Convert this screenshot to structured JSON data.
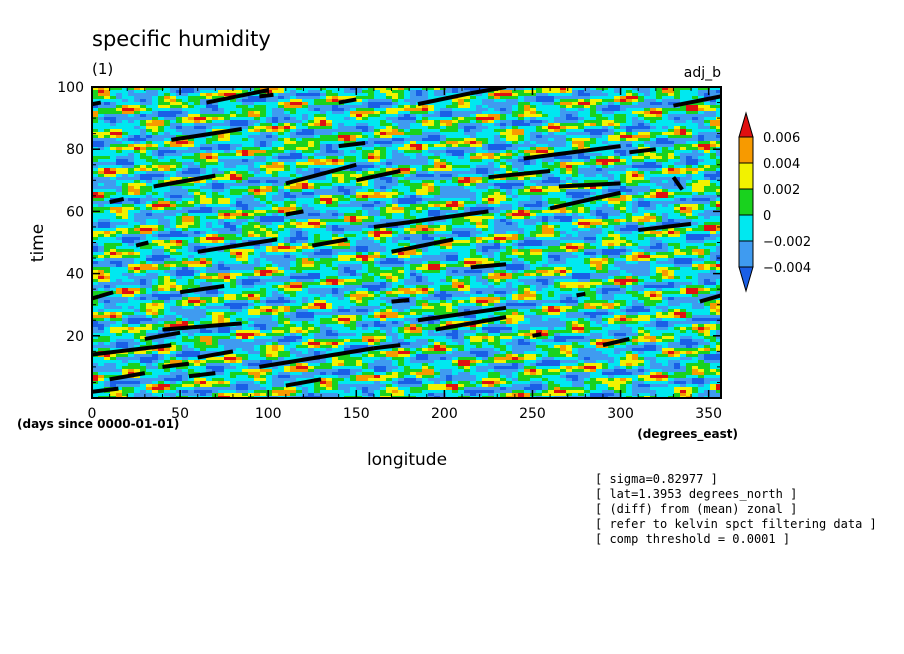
{
  "chart_data": {
    "type": "heatmap",
    "title": "specific humidity",
    "subtitle": "(1)",
    "run_label": "adj_b",
    "xlabel": "longitude",
    "x_units": "(degrees_east)",
    "ylabel": "time",
    "y_units": "(days since 0000-01-01)",
    "xlim": [
      0,
      357
    ],
    "ylim": [
      0,
      100
    ],
    "x_ticks": [
      0,
      50,
      100,
      150,
      200,
      250,
      300,
      350
    ],
    "x_tick_labels": [
      "0",
      "50",
      "100",
      "150",
      "200",
      "250",
      "300",
      "350"
    ],
    "y_ticks": [
      20,
      40,
      60,
      80,
      100
    ],
    "y_tick_labels": [
      "20",
      "40",
      "60",
      "80",
      "100"
    ],
    "colorbar": {
      "levels": [
        -0.006,
        -0.004,
        -0.002,
        0,
        0.002,
        0.004,
        0.006
      ],
      "labels": [
        "0.006",
        "0.004",
        "0.002",
        "0",
        "−0.002",
        "−0.004"
      ],
      "colors": [
        "#1a5fe6",
        "#3f9bf0",
        "#00e8f0",
        "#19d21e",
        "#f2f200",
        "#f79a00",
        "#e01010"
      ]
    },
    "composite_segments": [
      [
        0,
        94.5,
        5,
        95
      ],
      [
        10,
        63,
        18,
        64
      ],
      [
        65,
        95,
        100,
        99
      ],
      [
        95,
        97,
        103,
        97.5
      ],
      [
        140,
        95,
        150,
        96
      ],
      [
        185,
        94.5,
        215,
        98
      ],
      [
        215,
        98,
        235,
        100
      ],
      [
        45,
        83,
        85,
        86.5
      ],
      [
        140,
        81,
        155,
        82
      ],
      [
        110,
        69,
        150,
        75
      ],
      [
        150,
        70,
        175,
        73
      ],
      [
        35,
        68,
        70,
        71.5
      ],
      [
        225,
        71,
        260,
        73
      ],
      [
        245,
        77,
        300,
        81
      ],
      [
        305,
        79,
        320,
        80
      ],
      [
        335,
        67,
        330,
        71
      ],
      [
        265,
        68,
        300,
        69
      ],
      [
        330,
        94,
        357,
        97
      ],
      [
        110,
        59,
        120,
        60
      ],
      [
        160,
        55,
        225,
        60
      ],
      [
        260,
        61,
        300,
        66
      ],
      [
        310,
        54,
        340,
        56
      ],
      [
        60,
        47,
        105,
        51
      ],
      [
        125,
        49,
        145,
        51
      ],
      [
        170,
        47,
        205,
        51
      ],
      [
        215,
        42,
        235,
        43
      ],
      [
        25,
        49,
        32,
        50
      ],
      [
        50,
        34,
        75,
        36
      ],
      [
        0,
        32,
        12,
        34
      ],
      [
        40,
        22,
        85,
        24
      ],
      [
        30,
        19,
        50,
        21
      ],
      [
        0,
        14,
        45,
        17
      ],
      [
        10,
        6,
        30,
        8
      ],
      [
        40,
        10,
        55,
        11
      ],
      [
        55,
        7,
        70,
        8
      ],
      [
        60,
        13,
        80,
        15
      ],
      [
        95,
        10,
        160,
        16
      ],
      [
        160,
        16,
        175,
        17
      ],
      [
        110,
        4,
        130,
        6
      ],
      [
        170,
        31,
        180,
        31.5
      ],
      [
        185,
        25,
        235,
        29
      ],
      [
        195,
        22,
        235,
        26
      ],
      [
        250,
        20,
        255,
        20.5
      ],
      [
        275,
        33,
        280,
        33.5
      ],
      [
        290,
        17,
        305,
        19
      ],
      [
        345,
        31,
        357,
        33
      ],
      [
        0,
        2,
        15,
        3
      ]
    ]
  },
  "annotations": {
    "lines": [
      "[ sigma=0.82977 ]",
      "[ lat=1.3953 degrees_north ]",
      "[ (diff) from (mean) zonal ]",
      "[ refer to kelvin spct filtering data ]",
      "[ comp threshold = 0.0001 ]"
    ]
  }
}
